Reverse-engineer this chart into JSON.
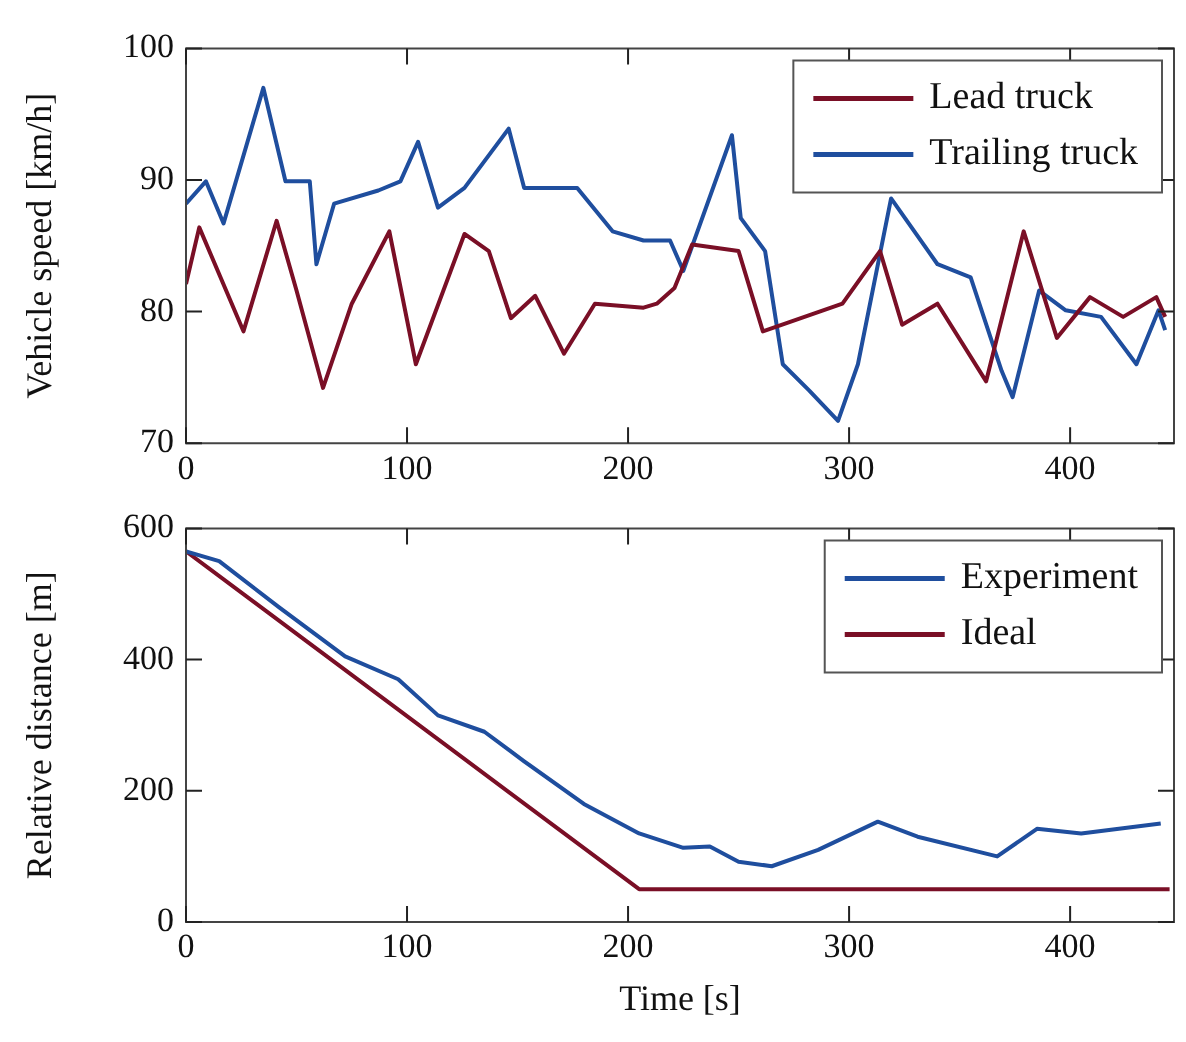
{
  "chart_data": [
    {
      "type": "line",
      "ylabel": "Vehicle speed [km/h]",
      "xlim": [
        0,
        447
      ],
      "xticks": [
        0,
        100,
        200,
        300,
        400
      ],
      "ylim": [
        70,
        100
      ],
      "yticks": [
        70,
        80,
        90,
        100
      ],
      "legend": "top right",
      "series": [
        {
          "name": "Lead truck",
          "color": "#7a0f26",
          "x": [
            0,
            6,
            26,
            41,
            50,
            62,
            75,
            92,
            104,
            126,
            137,
            147,
            158,
            171,
            185,
            207,
            213,
            221,
            229,
            250,
            261,
            297,
            314,
            324,
            340,
            362,
            379,
            394,
            409,
            424,
            439,
            443
          ],
          "values": [
            82.1,
            86.4,
            78.5,
            86.9,
            81.6,
            74.2,
            80.6,
            86.1,
            76,
            85.9,
            84.6,
            79.5,
            81.2,
            76.8,
            80.6,
            80.3,
            80.6,
            81.8,
            85.1,
            84.6,
            78.5,
            80.6,
            84.6,
            79,
            80.6,
            74.7,
            86.1,
            78,
            81.1,
            79.6,
            81.1,
            79.6
          ]
        },
        {
          "name": "Trailing truck",
          "color": "#1f4e9e",
          "x": [
            0,
            9,
            17,
            35,
            45,
            56,
            59,
            67,
            87,
            97,
            105,
            114,
            126,
            146,
            153,
            177,
            193,
            207,
            219,
            225,
            247,
            251,
            262,
            270,
            282,
            295,
            304,
            319,
            340,
            355,
            369,
            374,
            386,
            398,
            414,
            430,
            440,
            443
          ],
          "values": [
            88.2,
            89.9,
            86.7,
            97,
            89.9,
            89.9,
            83.6,
            88.2,
            89.2,
            89.9,
            92.9,
            87.9,
            89.4,
            93.9,
            89.4,
            89.4,
            86.1,
            85.4,
            85.4,
            83.1,
            93.4,
            87.1,
            84.6,
            76,
            74,
            71.7,
            76,
            88.6,
            83.6,
            82.6,
            75.5,
            73.5,
            81.6,
            80.1,
            79.6,
            76,
            80.1,
            78.6
          ]
        }
      ]
    },
    {
      "type": "line",
      "xlabel": "Time [s]",
      "ylabel": "Relative distance [m]",
      "xlim": [
        0,
        447
      ],
      "xticks": [
        0,
        100,
        200,
        300,
        400
      ],
      "ylim": [
        0,
        600
      ],
      "yticks": [
        0,
        200,
        400,
        600
      ],
      "legend": "top right",
      "series": [
        {
          "name": "Experiment",
          "color": "#1f4e9e",
          "x": [
            0,
            15,
            42,
            72,
            96,
            114,
            135,
            153,
            180,
            205,
            225,
            237,
            250,
            265,
            286,
            313,
            331,
            367,
            385,
            405,
            441
          ],
          "values": [
            565,
            550,
            480,
            405,
            370,
            315,
            290,
            245,
            180,
            135,
            113,
            115,
            92,
            85,
            110,
            153,
            130,
            100,
            142,
            135,
            150
          ]
        },
        {
          "name": "Ideal",
          "color": "#7a0f26",
          "x": [
            0,
            205,
            445
          ],
          "values": [
            565,
            50,
            50
          ]
        }
      ]
    }
  ]
}
